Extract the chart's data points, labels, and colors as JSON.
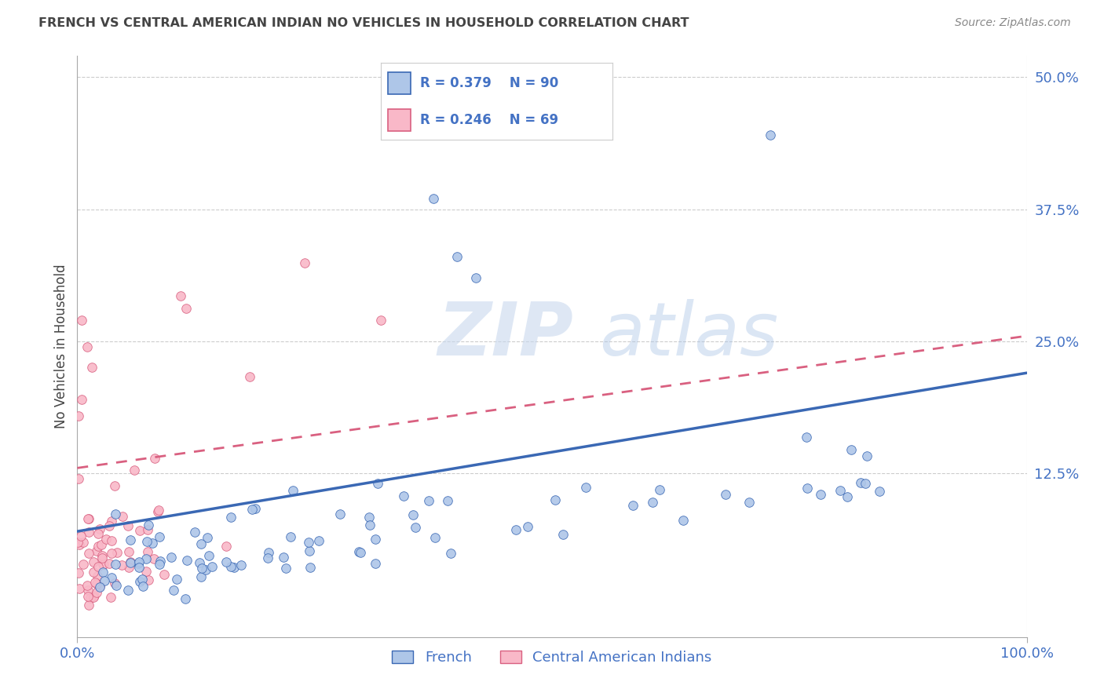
{
  "title": "FRENCH VS CENTRAL AMERICAN INDIAN NO VEHICLES IN HOUSEHOLD CORRELATION CHART",
  "source": "Source: ZipAtlas.com",
  "ylabel_label": "No Vehicles in Household",
  "french_color": "#aec6e8",
  "french_line_color": "#3a68b4",
  "cai_color": "#f9b8c8",
  "cai_line_color": "#d96080",
  "watermark_zip": "ZIP",
  "watermark_atlas": "atlas",
  "legend_french_r": "R = 0.379",
  "legend_french_n": "N = 90",
  "legend_cai_r": "R = 0.246",
  "legend_cai_n": "N = 69",
  "legend_label_french": "French",
  "legend_label_cai": "Central American Indians",
  "x_min": 0.0,
  "x_max": 1.0,
  "y_min": -0.03,
  "y_max": 0.52,
  "ytick_vals": [
    0.125,
    0.25,
    0.375,
    0.5
  ],
  "ytick_labels": [
    "12.5%",
    "25.0%",
    "37.5%",
    "50.0%"
  ],
  "xtick_vals": [
    0.0,
    1.0
  ],
  "xtick_labels": [
    "0.0%",
    "100.0%"
  ],
  "background_color": "#ffffff",
  "grid_color": "#cccccc",
  "title_color": "#444444",
  "tick_label_color": "#4472c4",
  "axis_label_color": "#444444",
  "french_line_start_y": 0.07,
  "french_line_end_y": 0.22,
  "cai_line_start_y": 0.13,
  "cai_line_end_y": 0.255
}
